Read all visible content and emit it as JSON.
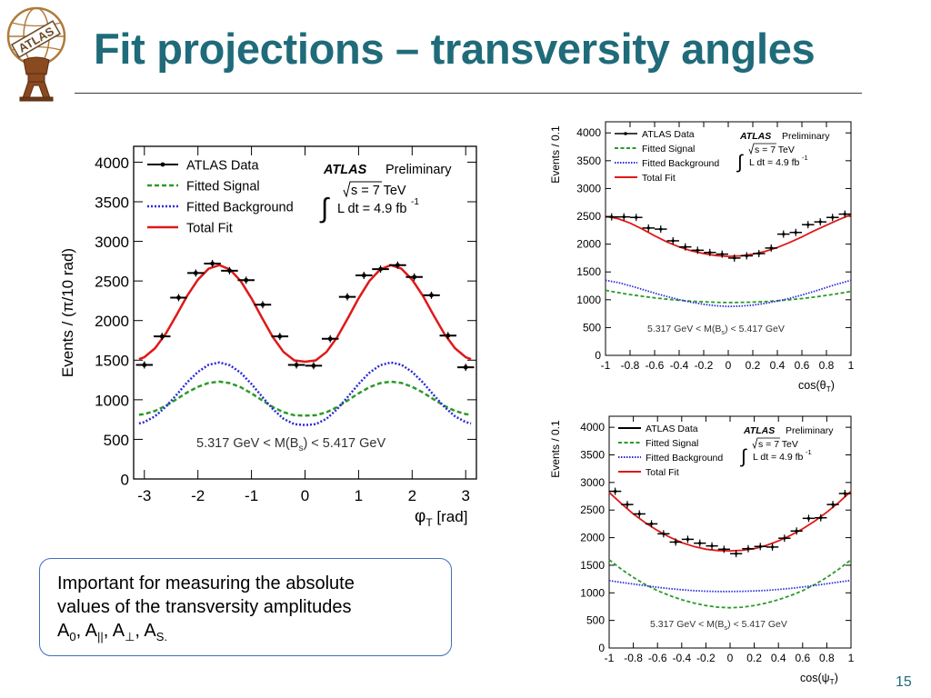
{
  "slide": {
    "title": "Fit projections – transversity angles",
    "page_number": "15",
    "logo_text": "ATLAS",
    "logo_icon": "atlas-figure-logo",
    "accent_color": "#1f6b7a"
  },
  "note": {
    "line1": "Important for measuring the absolute",
    "line2": "values of the transversity amplitudes",
    "a": "A",
    "sub0": "0",
    "subpar": "||",
    "subperp": "⊥",
    "subS": "S."
  },
  "chart_data": [
    {
      "type": "line",
      "ylabel": "Events / (π/10 rad)",
      "xlabel_symbol": "φ",
      "xlabel_subscript": "T",
      "xlabel_unit": " [rad]",
      "xlim": [
        -3.2,
        3.2
      ],
      "ylim": [
        0,
        4200
      ],
      "xticks": [
        -3,
        -2,
        -1,
        0,
        1,
        2,
        3
      ],
      "yticks": [
        0,
        500,
        1000,
        1500,
        2000,
        2500,
        3000,
        3500,
        4000
      ],
      "grid": false,
      "legend_position": "top-left",
      "legend": [
        "ATLAS Data",
        "Fitted Signal",
        "Fitted Background",
        "Total Fit"
      ],
      "annotation_experiment": "ATLAS",
      "annotation_status": "Preliminary",
      "annotation_energy": "s = 7 TeV",
      "annotation_lumi_prefix": "L dt = 4.9 fb",
      "annotation_lumi_exp": "-1",
      "mass_window": "5.317 GeV < M(B",
      "mass_window_sub": "s",
      "mass_window_suffix": ") < 5.417 GeV",
      "series": [
        {
          "name": "ATLAS Data",
          "style": "points",
          "color": "#000000",
          "x": [
            -3.0,
            -2.67,
            -2.36,
            -2.04,
            -1.73,
            -1.41,
            -1.1,
            -0.79,
            -0.47,
            -0.16,
            0.16,
            0.47,
            0.79,
            1.1,
            1.41,
            1.73,
            2.04,
            2.36,
            2.67,
            3.0
          ],
          "y": [
            1440,
            1800,
            2290,
            2600,
            2720,
            2630,
            2510,
            2200,
            1800,
            1440,
            1430,
            1770,
            2300,
            2570,
            2650,
            2700,
            2550,
            2320,
            1810,
            1410
          ],
          "xerr": 0.157
        },
        {
          "name": "Fitted Signal",
          "style": "dashed",
          "color": "#2a9a2a",
          "x": [
            -3.1,
            -3.0,
            -2.8,
            -2.6,
            -2.4,
            -2.2,
            -2.0,
            -1.8,
            -1.6,
            -1.4,
            -1.2,
            -1.0,
            -0.8,
            -0.6,
            -0.4,
            -0.2,
            0.0,
            0.2,
            0.4,
            0.6,
            0.8,
            1.0,
            1.2,
            1.4,
            1.6,
            1.8,
            2.0,
            2.2,
            2.4,
            2.6,
            2.8,
            3.0,
            3.1
          ],
          "y": [
            810,
            819,
            859,
            924,
            1006,
            1092,
            1164,
            1213,
            1229,
            1209,
            1158,
            1081,
            993,
            908,
            842,
            805,
            800,
            805,
            842,
            908,
            993,
            1081,
            1158,
            1209,
            1229,
            1213,
            1164,
            1092,
            1006,
            924,
            859,
            819,
            810
          ]
        },
        {
          "name": "Fitted Background",
          "style": "dotted",
          "color": "#2a2ad8",
          "x": [
            -3.1,
            -3.0,
            -2.8,
            -2.6,
            -2.4,
            -2.2,
            -2.0,
            -1.8,
            -1.6,
            -1.4,
            -1.2,
            -1.0,
            -0.8,
            -0.6,
            -0.4,
            -0.2,
            0.0,
            0.2,
            0.4,
            0.6,
            0.8,
            1.0,
            1.2,
            1.4,
            1.6,
            1.8,
            2.0,
            2.2,
            2.4,
            2.6,
            2.8,
            3.0,
            3.1
          ],
          "y": [
            701,
            718,
            792,
            911,
            1061,
            1220,
            1352,
            1442,
            1471,
            1435,
            1340,
            1199,
            1037,
            881,
            760,
            692,
            680,
            692,
            760,
            881,
            1037,
            1199,
            1340,
            1435,
            1471,
            1442,
            1352,
            1220,
            1061,
            911,
            792,
            718,
            701
          ]
        },
        {
          "name": "Total Fit",
          "style": "solid",
          "color": "#e01818",
          "x": [
            -3.1,
            -3.0,
            -2.8,
            -2.6,
            -2.4,
            -2.2,
            -2.0,
            -1.8,
            -1.6,
            -1.4,
            -1.2,
            -1.0,
            -0.8,
            -0.6,
            -0.4,
            -0.2,
            0.0,
            0.2,
            0.4,
            0.6,
            0.8,
            1.0,
            1.2,
            1.4,
            1.6,
            1.8,
            2.0,
            2.2,
            2.4,
            2.6,
            2.8,
            3.0,
            3.1
          ],
          "y": [
            1512,
            1538,
            1651,
            1834,
            2068,
            2314,
            2516,
            2655,
            2700,
            2644,
            2498,
            2280,
            2030,
            1789,
            1603,
            1497,
            1480,
            1497,
            1603,
            1789,
            2030,
            2280,
            2498,
            2644,
            2700,
            2655,
            2516,
            2314,
            2068,
            1834,
            1651,
            1538,
            1512
          ]
        }
      ]
    },
    {
      "type": "line",
      "ylabel": "Events / 0.1",
      "xlabel_symbol": "cos(θ",
      "xlabel_subscript": "T",
      "xlabel_unit": ")",
      "xlim": [
        -1.0,
        1.0
      ],
      "ylim": [
        0,
        4200
      ],
      "xticks": [
        -1,
        -0.8,
        -0.6,
        -0.4,
        -0.2,
        0,
        0.2,
        0.4,
        0.6,
        0.8,
        1
      ],
      "yticks": [
        0,
        500,
        1000,
        1500,
        2000,
        2500,
        3000,
        3500,
        4000
      ],
      "grid": false,
      "legend_position": "top-left",
      "legend": [
        "ATLAS Data",
        "Fitted Signal",
        "Fitted Background",
        "Total Fit"
      ],
      "annotation_experiment": "ATLAS",
      "annotation_status": "Preliminary",
      "annotation_energy": "s = 7 TeV",
      "annotation_lumi_prefix": "L dt = 4.9 fb",
      "annotation_lumi_exp": "-1",
      "mass_window": "5.317 GeV < M(B",
      "mass_window_sub": "s",
      "mass_window_suffix": ") < 5.417 GeV",
      "series": [
        {
          "name": "ATLAS Data",
          "style": "points",
          "color": "#000000",
          "x": [
            -0.95,
            -0.85,
            -0.75,
            -0.65,
            -0.55,
            -0.45,
            -0.35,
            -0.25,
            -0.15,
            -0.05,
            0.05,
            0.15,
            0.25,
            0.35,
            0.45,
            0.55,
            0.65,
            0.75,
            0.85,
            0.95
          ],
          "y": [
            2490,
            2490,
            2480,
            2290,
            2270,
            2060,
            1950,
            1890,
            1850,
            1820,
            1750,
            1790,
            1830,
            1930,
            2180,
            2210,
            2350,
            2400,
            2480,
            2540
          ],
          "xerr": 0.05
        },
        {
          "name": "Fitted Signal",
          "style": "dashed",
          "color": "#2a9a2a",
          "x": [
            -1.0,
            -0.9,
            -0.8,
            -0.7,
            -0.6,
            -0.5,
            -0.4,
            -0.3,
            -0.2,
            -0.1,
            0.0,
            0.1,
            0.2,
            0.3,
            0.4,
            0.5,
            0.6,
            0.7,
            0.8,
            0.9,
            1.0
          ],
          "y": [
            1170,
            1130,
            1094,
            1062,
            1034,
            1010,
            990,
            974,
            962,
            954,
            950,
            952,
            958,
            968,
            982,
            1000,
            1022,
            1048,
            1078,
            1112,
            1150
          ]
        },
        {
          "name": "Fitted Background",
          "style": "dotted",
          "color": "#2a2ad8",
          "x": [
            -1.0,
            -0.9,
            -0.8,
            -0.7,
            -0.6,
            -0.5,
            -0.4,
            -0.3,
            -0.2,
            -0.1,
            0.0,
            0.1,
            0.2,
            0.3,
            0.4,
            0.5,
            0.6,
            0.7,
            0.8,
            0.9,
            1.0
          ],
          "y": [
            1350,
            1310,
            1252,
            1186,
            1120,
            1058,
            1002,
            955,
            918,
            893,
            880,
            885,
            903,
            934,
            975,
            1025,
            1085,
            1150,
            1220,
            1290,
            1350
          ]
        },
        {
          "name": "Total Fit",
          "style": "solid",
          "color": "#e01818",
          "x": [
            -1.0,
            -0.9,
            -0.8,
            -0.7,
            -0.6,
            -0.5,
            -0.4,
            -0.3,
            -0.2,
            -0.1,
            0.0,
            0.1,
            0.2,
            0.3,
            0.4,
            0.5,
            0.6,
            0.7,
            0.8,
            0.9,
            1.0
          ],
          "y": [
            2500,
            2460,
            2380,
            2270,
            2150,
            2040,
            1950,
            1880,
            1830,
            1795,
            1780,
            1790,
            1820,
            1870,
            1940,
            2030,
            2130,
            2240,
            2340,
            2440,
            2530
          ]
        }
      ]
    },
    {
      "type": "line",
      "ylabel": "Events / 0.1",
      "xlabel_symbol": "cos(ψ",
      "xlabel_subscript": "T",
      "xlabel_unit": ")",
      "xlim": [
        -1.0,
        1.0
      ],
      "ylim": [
        0,
        4200
      ],
      "xticks": [
        -1,
        -0.8,
        -0.6,
        -0.4,
        -0.2,
        0,
        0.2,
        0.4,
        0.6,
        0.8,
        1
      ],
      "yticks": [
        0,
        500,
        1000,
        1500,
        2000,
        2500,
        3000,
        3500,
        4000
      ],
      "grid": false,
      "legend_position": "top-left",
      "legend": [
        "ATLAS Data",
        "Fitted Signal",
        "Fitted Background",
        "Total Fit"
      ],
      "annotation_experiment": "ATLAS",
      "annotation_status": "Preliminary",
      "annotation_energy": "s = 7 TeV",
      "annotation_lumi_prefix": "L dt = 4.9 fb",
      "annotation_lumi_exp": "-1",
      "mass_window": "5.317 GeV < M(B",
      "mass_window_sub": "s",
      "mass_window_suffix": ") < 5.417 GeV",
      "series": [
        {
          "name": "ATLAS Data",
          "style": "points",
          "color": "#000000",
          "x": [
            -0.95,
            -0.85,
            -0.75,
            -0.65,
            -0.55,
            -0.45,
            -0.35,
            -0.25,
            -0.15,
            -0.05,
            0.05,
            0.15,
            0.25,
            0.35,
            0.45,
            0.55,
            0.65,
            0.75,
            0.85,
            0.95
          ],
          "y": [
            2840,
            2600,
            2430,
            2250,
            2070,
            1920,
            1970,
            1900,
            1850,
            1790,
            1710,
            1800,
            1840,
            1830,
            1990,
            2120,
            2350,
            2360,
            2600,
            2800
          ],
          "xerr": 0.05
        },
        {
          "name": "Fitted Signal",
          "style": "dashed",
          "color": "#2a9a2a",
          "x": [
            -1.0,
            -0.9,
            -0.8,
            -0.7,
            -0.6,
            -0.5,
            -0.4,
            -0.3,
            -0.2,
            -0.1,
            0.0,
            0.1,
            0.2,
            0.3,
            0.4,
            0.5,
            0.6,
            0.7,
            0.8,
            0.9,
            1.0
          ],
          "y": [
            1600,
            1430,
            1280,
            1150,
            1040,
            950,
            875,
            815,
            770,
            740,
            730,
            740,
            770,
            815,
            875,
            950,
            1040,
            1150,
            1280,
            1430,
            1600
          ]
        },
        {
          "name": "Fitted Background",
          "style": "dotted",
          "color": "#2a2ad8",
          "x": [
            -1.0,
            -0.9,
            -0.8,
            -0.7,
            -0.6,
            -0.5,
            -0.4,
            -0.3,
            -0.2,
            -0.1,
            0.0,
            0.1,
            0.2,
            0.3,
            0.4,
            0.5,
            0.6,
            0.7,
            0.8,
            0.9,
            1.0
          ],
          "y": [
            1220,
            1190,
            1160,
            1130,
            1100,
            1075,
            1055,
            1040,
            1030,
            1025,
            1025,
            1028,
            1035,
            1045,
            1060,
            1080,
            1105,
            1135,
            1165,
            1195,
            1225
          ]
        },
        {
          "name": "Total Fit",
          "style": "solid",
          "color": "#e01818",
          "x": [
            -1.0,
            -0.9,
            -0.8,
            -0.7,
            -0.6,
            -0.5,
            -0.4,
            -0.3,
            -0.2,
            -0.1,
            0.0,
            0.1,
            0.2,
            0.3,
            0.4,
            0.5,
            0.6,
            0.7,
            0.8,
            0.9,
            1.0
          ],
          "y": [
            2820,
            2620,
            2430,
            2270,
            2130,
            2010,
            1910,
            1840,
            1790,
            1765,
            1760,
            1770,
            1800,
            1860,
            1940,
            2040,
            2160,
            2300,
            2460,
            2640,
            2840
          ]
        }
      ]
    }
  ]
}
